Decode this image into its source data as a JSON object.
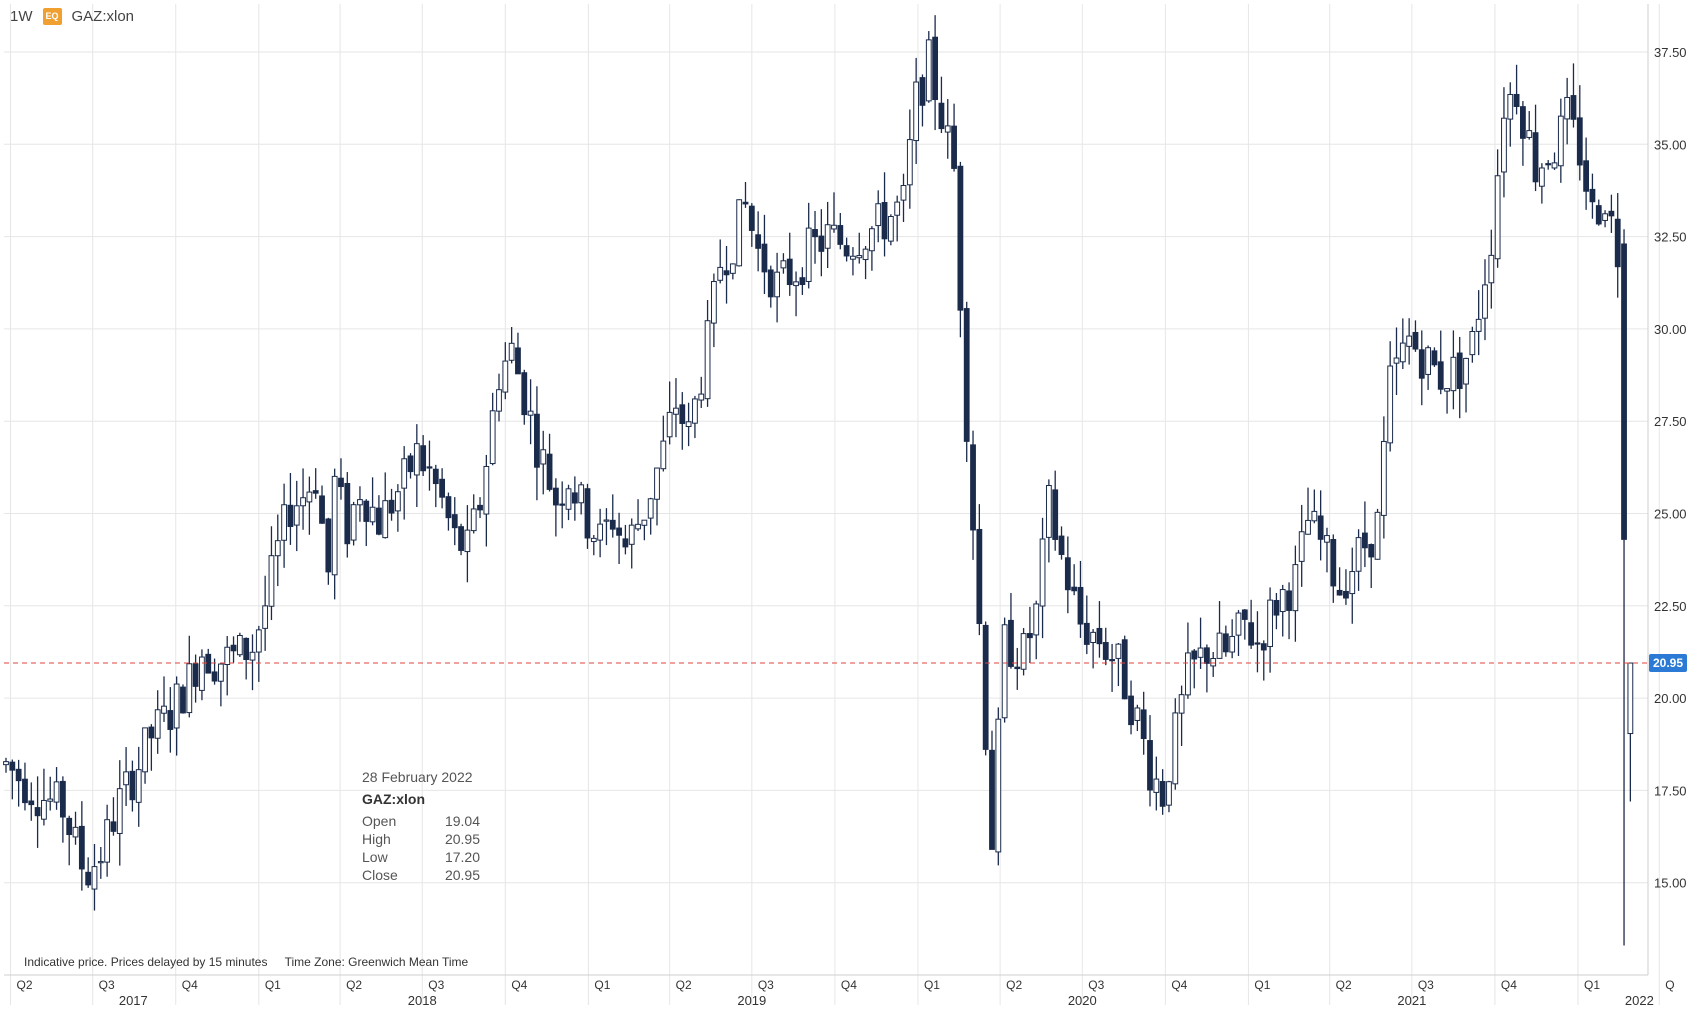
{
  "header": {
    "interval": "1W",
    "badge": "EQ",
    "symbol": "GAZ:xlon"
  },
  "tooltip": {
    "date": "28 February 2022",
    "symbol": "GAZ:xlon",
    "rows": [
      {
        "label": "Open",
        "value": "19.04"
      },
      {
        "label": "High",
        "value": "20.95"
      },
      {
        "label": "Low",
        "value": "17.20"
      },
      {
        "label": "Close",
        "value": "20.95"
      }
    ]
  },
  "footer": {
    "note": "Indicative price. Prices delayed by 15 minutes",
    "timezone": "Time Zone: Greenwich Mean Time"
  },
  "colors": {
    "candle": "#1b2b4b",
    "current_line": "#e0443e",
    "current_box": "#2b7bd6"
  },
  "chart_data": {
    "type": "candlestick",
    "interval": "weekly",
    "ylim": [
      12.5,
      38.8
    ],
    "y_ticks": [
      "15.00",
      "17.50",
      "20.00",
      "22.50",
      "25.00",
      "27.50",
      "30.00",
      "32.50",
      "35.00",
      "37.50"
    ],
    "current_price": "20.95",
    "x_range": [
      "2017-03-27",
      "2022-03-14"
    ],
    "quarter_labels": [
      {
        "label": "Q2",
        "date": "2017-04-01"
      },
      {
        "label": "Q3",
        "date": "2017-07-01"
      },
      {
        "label": "Q4",
        "date": "2017-10-01"
      },
      {
        "label": "Q1",
        "date": "2018-01-01"
      },
      {
        "label": "Q2",
        "date": "2018-04-01"
      },
      {
        "label": "Q3",
        "date": "2018-07-01"
      },
      {
        "label": "Q4",
        "date": "2018-10-01"
      },
      {
        "label": "Q1",
        "date": "2019-01-01"
      },
      {
        "label": "Q2",
        "date": "2019-04-01"
      },
      {
        "label": "Q3",
        "date": "2019-07-01"
      },
      {
        "label": "Q4",
        "date": "2019-10-01"
      },
      {
        "label": "Q1",
        "date": "2020-01-01"
      },
      {
        "label": "Q2",
        "date": "2020-04-01"
      },
      {
        "label": "Q3",
        "date": "2020-07-01"
      },
      {
        "label": "Q4",
        "date": "2020-10-01"
      },
      {
        "label": "Q1",
        "date": "2021-01-01"
      },
      {
        "label": "Q2",
        "date": "2021-04-01"
      },
      {
        "label": "Q3",
        "date": "2021-07-01"
      },
      {
        "label": "Q4",
        "date": "2021-10-01"
      },
      {
        "label": "Q1",
        "date": "2022-01-01"
      },
      {
        "label": "Q",
        "date": "2022-04-01"
      }
    ],
    "year_labels": [
      {
        "label": "2017",
        "date": "2017-08-15"
      },
      {
        "label": "2018",
        "date": "2018-07-01"
      },
      {
        "label": "2019",
        "date": "2019-07-01"
      },
      {
        "label": "2020",
        "date": "2020-07-01"
      },
      {
        "label": "2021",
        "date": "2021-07-01"
      },
      {
        "label": "2022",
        "date": "2022-03-10"
      }
    ],
    "path": [
      [
        "2017-03-27",
        18.2
      ],
      [
        "2017-05-01",
        17.4
      ],
      [
        "2017-05-29",
        17.0
      ],
      [
        "2017-06-19",
        15.5
      ],
      [
        "2017-06-26",
        15.3
      ],
      [
        "2017-07-10",
        15.8
      ],
      [
        "2017-07-31",
        17.2
      ],
      [
        "2017-08-21",
        18.2
      ],
      [
        "2017-09-04",
        19.0
      ],
      [
        "2017-09-25",
        19.6
      ],
      [
        "2017-10-16",
        20.5
      ],
      [
        "2017-10-30",
        21.3
      ],
      [
        "2017-11-13",
        21.0
      ],
      [
        "2017-12-04",
        21.1
      ],
      [
        "2017-12-25",
        21.4
      ],
      [
        "2018-01-08",
        22.5
      ],
      [
        "2018-01-22",
        24.0
      ],
      [
        "2018-02-05",
        25.2
      ],
      [
        "2018-02-19",
        25.5
      ],
      [
        "2018-03-05",
        26.0
      ],
      [
        "2018-03-19",
        23.4
      ],
      [
        "2018-03-26",
        25.8
      ],
      [
        "2018-04-09",
        24.6
      ],
      [
        "2018-04-23",
        25.7
      ],
      [
        "2018-05-14",
        24.8
      ],
      [
        "2018-05-28",
        25.3
      ],
      [
        "2018-06-11",
        25.9
      ],
      [
        "2018-06-25",
        26.6
      ],
      [
        "2018-07-09",
        26.1
      ],
      [
        "2018-07-23",
        25.3
      ],
      [
        "2018-08-06",
        24.3
      ],
      [
        "2018-08-20",
        24.0
      ],
      [
        "2018-09-03",
        25.3
      ],
      [
        "2018-09-24",
        28.8
      ],
      [
        "2018-10-08",
        29.4
      ],
      [
        "2018-10-22",
        28.2
      ],
      [
        "2018-11-05",
        26.9
      ],
      [
        "2018-11-26",
        25.4
      ],
      [
        "2018-12-10",
        26.0
      ],
      [
        "2018-12-31",
        24.8
      ],
      [
        "2019-01-14",
        24.3
      ],
      [
        "2019-01-28",
        24.9
      ],
      [
        "2019-02-11",
        24.1
      ],
      [
        "2019-03-04",
        25.1
      ],
      [
        "2019-03-25",
        26.7
      ],
      [
        "2019-04-08",
        28.0
      ],
      [
        "2019-04-22",
        27.1
      ],
      [
        "2019-05-13",
        29.6
      ],
      [
        "2019-05-27",
        31.8
      ],
      [
        "2019-06-10",
        32.4
      ],
      [
        "2019-06-24",
        33.3
      ],
      [
        "2019-07-08",
        32.1
      ],
      [
        "2019-07-29",
        31.2
      ],
      [
        "2019-08-19",
        31.6
      ],
      [
        "2019-09-02",
        32.1
      ],
      [
        "2019-09-23",
        32.5
      ],
      [
        "2019-10-14",
        32.3
      ],
      [
        "2019-11-04",
        32.6
      ],
      [
        "2019-11-25",
        32.9
      ],
      [
        "2019-12-16",
        33.4
      ],
      [
        "2019-12-30",
        36.2
      ],
      [
        "2020-01-13",
        37.2
      ],
      [
        "2020-01-27",
        35.8
      ],
      [
        "2020-02-10",
        34.3
      ],
      [
        "2020-02-24",
        27.6
      ],
      [
        "2020-03-09",
        22.0
      ],
      [
        "2020-03-23",
        16.2
      ],
      [
        "2020-04-06",
        21.5
      ],
      [
        "2020-04-27",
        21.2
      ],
      [
        "2020-05-11",
        22.3
      ],
      [
        "2020-05-25",
        25.2
      ],
      [
        "2020-06-08",
        23.8
      ],
      [
        "2020-06-29",
        22.0
      ],
      [
        "2020-07-20",
        21.6
      ],
      [
        "2020-08-10",
        20.9
      ],
      [
        "2020-08-31",
        19.4
      ],
      [
        "2020-09-14",
        18.1
      ],
      [
        "2020-09-28",
        17.4
      ],
      [
        "2020-10-12",
        19.0
      ],
      [
        "2020-10-26",
        20.6
      ],
      [
        "2020-11-16",
        21.3
      ],
      [
        "2020-12-07",
        21.2
      ],
      [
        "2020-12-28",
        22.0
      ],
      [
        "2021-01-11",
        21.5
      ],
      [
        "2021-02-01",
        22.6
      ],
      [
        "2021-02-22",
        23.2
      ],
      [
        "2021-03-08",
        24.8
      ],
      [
        "2021-03-22",
        24.2
      ],
      [
        "2021-04-12",
        23.0
      ],
      [
        "2021-05-03",
        23.9
      ],
      [
        "2021-05-24",
        24.7
      ],
      [
        "2021-06-07",
        28.5
      ],
      [
        "2021-06-28",
        29.7
      ],
      [
        "2021-07-12",
        29.3
      ],
      [
        "2021-08-02",
        28.7
      ],
      [
        "2021-08-23",
        28.9
      ],
      [
        "2021-09-06",
        29.6
      ],
      [
        "2021-09-27",
        32.5
      ],
      [
        "2021-10-11",
        36.1
      ],
      [
        "2021-10-25",
        36.5
      ],
      [
        "2021-11-15",
        34.4
      ],
      [
        "2021-12-06",
        34.9
      ],
      [
        "2021-12-20",
        35.7
      ],
      [
        "2022-01-03",
        34.8
      ],
      [
        "2022-01-17",
        33.1
      ],
      [
        "2022-01-31",
        33.6
      ],
      [
        "2022-02-14",
        32.1
      ],
      [
        "2022-02-21",
        24.3
      ],
      [
        "2022-02-28",
        19.0
      ]
    ],
    "candles": [
      {
        "date": "2022-02-21",
        "open": 32.3,
        "high": 32.7,
        "low": 13.3,
        "close": 24.3
      },
      {
        "date": "2022-02-28",
        "open": 19.04,
        "high": 20.95,
        "low": 17.2,
        "close": 20.95
      }
    ]
  }
}
